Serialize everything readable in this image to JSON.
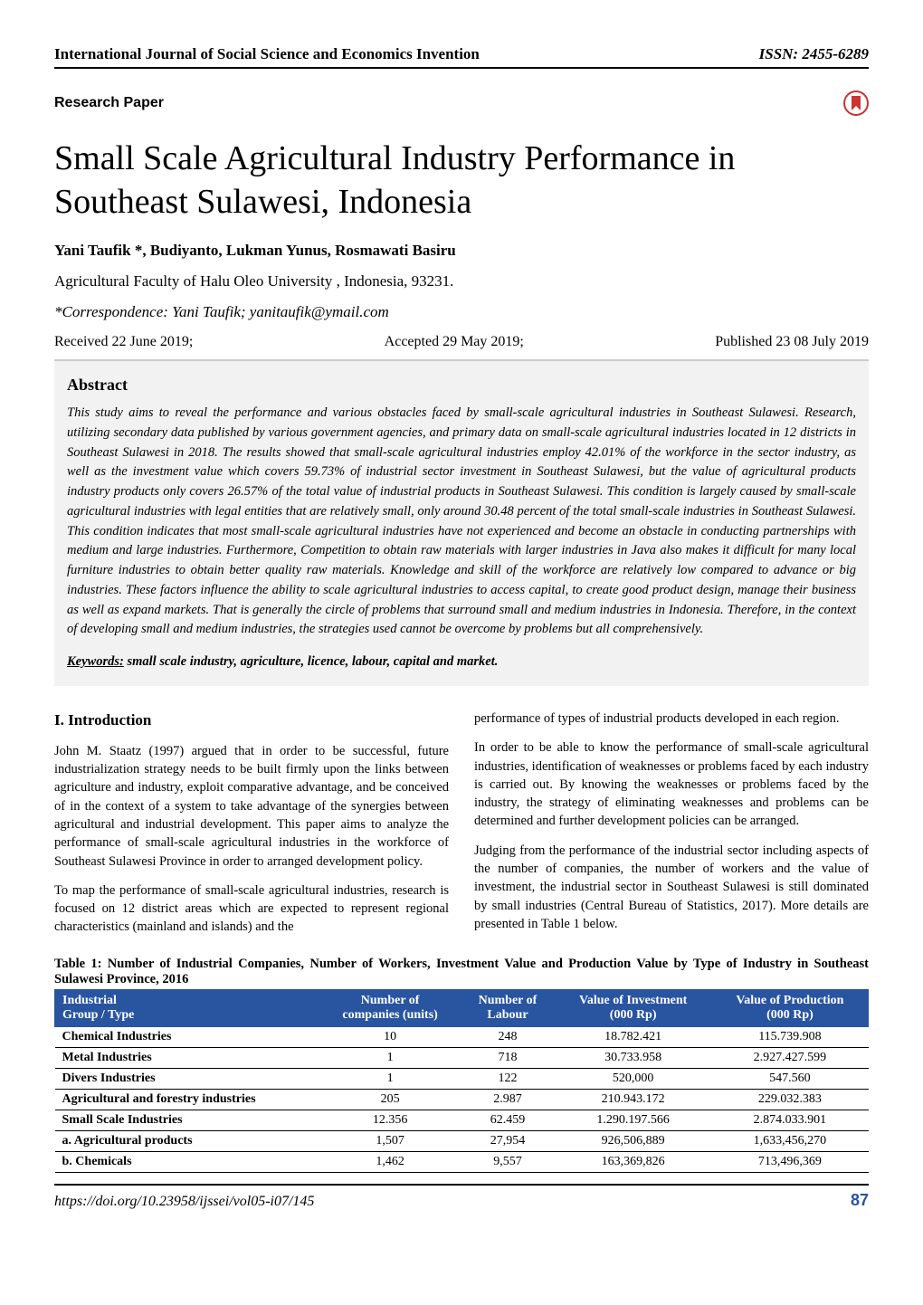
{
  "header": {
    "journal": "International Journal of Social Science and Economics Invention",
    "issn": "ISSN: 2455-6289"
  },
  "paper_type": "Research Paper",
  "title": "Small Scale Agricultural Industry Performance in Southeast Sulawesi, Indonesia",
  "authors": "Yani Taufik *, Budiyanto, Lukman Yunus, Rosmawati Basiru",
  "affiliation": "Agricultural Faculty of Halu Oleo University , Indonesia, 93231.",
  "correspondence": "*Correspondence: Yani Taufik; yanitaufik@ymail.com",
  "dates": {
    "received": "Received 22 June 2019;",
    "accepted": "Accepted 29 May 2019;",
    "published": "Published 23 08 July 2019"
  },
  "abstract": {
    "heading": "Abstract",
    "body": "This study aims to reveal the performance and various obstacles faced by small-scale agricultural industries in Southeast Sulawesi. Research, utilizing secondary data published by various government agencies, and primary data on small-scale agricultural industries located in 12 districts in Southeast Sulawesi in 2018. The results showed that small-scale agricultural industries employ 42.01% of the workforce in the sector industry, as well as the investment value which covers 59.73% of industrial sector investment in Southeast Sulawesi, but the value of agricultural products industry products only covers 26.57% of the total value of industrial products in Southeast Sulawesi. This condition is largely caused by small-scale agricultural industries with legal entities that are relatively small, only around 30.48 percent of the total small-scale industries in Southeast Sulawesi. This condition indicates that most small-scale agricultural industries have not experienced and become an obstacle in conducting partnerships with medium and large industries. Furthermore, Competition to obtain raw materials with larger industries in Java also makes it difficult for many local furniture industries to obtain better quality raw materials. Knowledge and skill of the workforce are relatively low compared to advance or big industries. These factors influence the ability to scale agricultural industries to access capital, to create good product design, manage their business as well as expand markets. That is generally the circle of problems that surround small and medium industries in Indonesia. Therefore, in the context of developing small and medium industries, the strategies used cannot be overcome by problems but all comprehensively.",
    "keywords_label": "Keywords:",
    "keywords_text": " small scale industry, agriculture, licence, labour, capital and market."
  },
  "intro": {
    "heading": "I. Introduction",
    "left_p1": "John M. Staatz (1997) argued that in order to be successful, future industrialization strategy needs to be built firmly upon the links between agriculture and industry, exploit comparative advantage, and be conceived of in the context of a system to take advantage of the synergies between agricultural and industrial development. This paper aims to analyze the performance of small-scale agricultural industries in the workforce of Southeast Sulawesi Province in order to arranged development policy.",
    "left_p2": "To map the performance of small-scale agricultural industries, research is focused on 12 district areas which are expected to represent regional characteristics (mainland and islands) and the",
    "right_p1": "performance of types of industrial products developed in each region.",
    "right_p2": "In order to be able to know the performance of small-scale agricultural industries, identification of weaknesses or problems faced by each industry is carried out. By knowing the weaknesses or problems faced by the industry, the strategy of eliminating weaknesses and problems can be determined and further development policies can be arranged.",
    "right_p3": "Judging from the performance of the industrial sector including aspects of the number of companies, the number of workers and the value of investment, the industrial sector in Southeast Sulawesi is still dominated by small industries (Central Bureau of Statistics, 2017). More details are presented in Table 1 below."
  },
  "table1": {
    "caption": "Table 1: Number of Industrial Companies, Number of Workers, Investment Value and Production Value by Type of Industry in Southeast Sulawesi Province, 2016",
    "header_bg": "#2854a0",
    "header_fg": "#ffffff",
    "columns": [
      {
        "line1": "Industrial",
        "line2": "Group / Type"
      },
      {
        "line1": "Number of",
        "line2": "companies (units)"
      },
      {
        "line1": "Number of",
        "line2": "Labour"
      },
      {
        "line1": "Value of Investment",
        "line2": "(000 Rp)"
      },
      {
        "line1": "Value of Production",
        "line2": "(000 Rp)"
      }
    ],
    "rows": [
      {
        "label": "Chemical Industries",
        "companies": "10",
        "labour": "248",
        "investment": "18.782.421",
        "production": "115.739.908"
      },
      {
        "label": "Metal Industries",
        "companies": "1",
        "labour": "718",
        "investment": "30.733.958",
        "production": "2.927.427.599"
      },
      {
        "label": "Divers Industries",
        "companies": "1",
        "labour": "122",
        "investment": "520,000",
        "production": "547.560"
      },
      {
        "label": "Agricultural and forestry industries",
        "companies": "205",
        "labour": "2.987",
        "investment": "210.943.172",
        "production": "229.032.383"
      },
      {
        "label": "Small Scale Industries",
        "companies": "12.356",
        "labour": "62.459",
        "investment": "1.290.197.566",
        "production": "2.874.033.901"
      },
      {
        "label": "a.   Agricultural products",
        "sub": true,
        "companies": "1,507",
        "labour": "27,954",
        "investment": "926,506,889",
        "production": "1,633,456,270"
      },
      {
        "label": "b.   Chemicals",
        "sub": true,
        "companies": "1,462",
        "labour": "9,557",
        "investment": "163,369,826",
        "production": "713,496,369"
      }
    ]
  },
  "footer": {
    "doi": "https://doi.org/10.23958/ijssei/vol05-i07/145",
    "page": "87"
  }
}
